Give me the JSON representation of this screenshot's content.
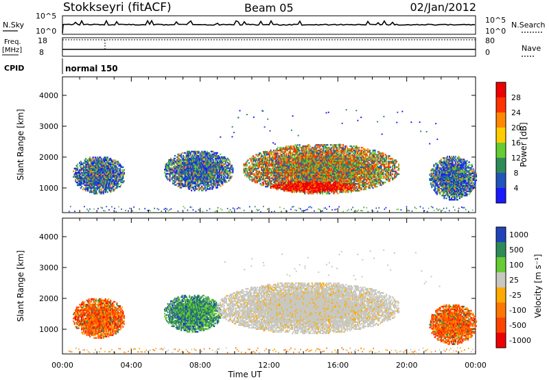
{
  "header": {
    "station": "Stokkseyri (fitACF)",
    "beam": "Beam 05",
    "date": "02/Jan/2012"
  },
  "top_panels": {
    "nsky_label": "N.Sky",
    "nsearch_label": "N.Search",
    "nsky_ticks": [
      "10^5",
      "10^0"
    ],
    "freq_label": "Freq.",
    "freq_unit": "[MHz]",
    "freq_ticks": [
      "18",
      "8"
    ],
    "nave_label": "Nave",
    "nave_ticks": [
      "80",
      "0"
    ],
    "cpid_label": "CPID",
    "cpid_value": "normal 150"
  },
  "colors": {
    "power_scale": [
      "#1a1aff",
      "#2255bb",
      "#2e8b57",
      "#66cc33",
      "#ffcc00",
      "#ff8800",
      "#ff3300",
      "#ee0000"
    ],
    "velocity_scale": [
      "#2244bb",
      "#2e8b57",
      "#66cc33",
      "#c8c8c0",
      "#ffaa00",
      "#ff7700",
      "#ff4400",
      "#ee0000"
    ]
  },
  "chart_data": [
    {
      "type": "heatmap",
      "name": "power",
      "ylabel": "Slant Range [km]",
      "y_ticks": [
        "1000",
        "2000",
        "3000",
        "4000"
      ],
      "ylim": [
        200,
        4600
      ],
      "xlim": [
        0,
        24
      ],
      "colorbar_label": "Power [dB]",
      "colorbar_ticks": [
        "4",
        "8",
        "12",
        "16",
        "20",
        "24",
        "28"
      ],
      "colorbar_range": [
        0,
        32
      ],
      "echo_regions": [
        {
          "t_start": 0.6,
          "t_end": 3.6,
          "range_low": 800,
          "range_high": 2000,
          "level": "low-mid"
        },
        {
          "t_start": 5.9,
          "t_end": 9.9,
          "range_low": 900,
          "range_high": 2200,
          "level": "low-mid"
        },
        {
          "t_start": 10.5,
          "t_end": 19.5,
          "range_low": 800,
          "range_high": 2400,
          "level": "mid-high"
        },
        {
          "t_start": 12.0,
          "t_end": 17.0,
          "range_low": 850,
          "range_high": 1200,
          "level": "high"
        },
        {
          "t_start": 21.3,
          "t_end": 24.0,
          "range_low": 600,
          "range_high": 2000,
          "level": "low-mid"
        }
      ]
    },
    {
      "type": "heatmap",
      "name": "velocity",
      "ylabel": "Slant Range [km]",
      "y_ticks": [
        "1000",
        "2000",
        "3000",
        "4000"
      ],
      "ylim": [
        200,
        4600
      ],
      "xlim": [
        0,
        24
      ],
      "x_ticks": [
        "00:00",
        "04:00",
        "08:00",
        "12:00",
        "16:00",
        "20:00",
        "00:00"
      ],
      "xlabel": "Time UT",
      "colorbar_label": "Velocity [m s⁻¹]",
      "colorbar_ticks": [
        "1000",
        "500",
        "100",
        "25",
        "-25",
        "-100",
        "-500",
        "-1000"
      ],
      "echo_regions": [
        {
          "t_start": 0.6,
          "t_end": 3.6,
          "range_low": 700,
          "range_high": 2000,
          "level": "negative"
        },
        {
          "t_start": 5.9,
          "t_end": 9.2,
          "range_low": 900,
          "range_high": 2100,
          "level": "positive"
        },
        {
          "t_start": 9.0,
          "t_end": 19.5,
          "range_low": 850,
          "range_high": 2500,
          "level": "ground-scatter"
        },
        {
          "t_start": 21.3,
          "t_end": 24.0,
          "range_low": 500,
          "range_high": 1800,
          "level": "negative"
        }
      ]
    }
  ]
}
